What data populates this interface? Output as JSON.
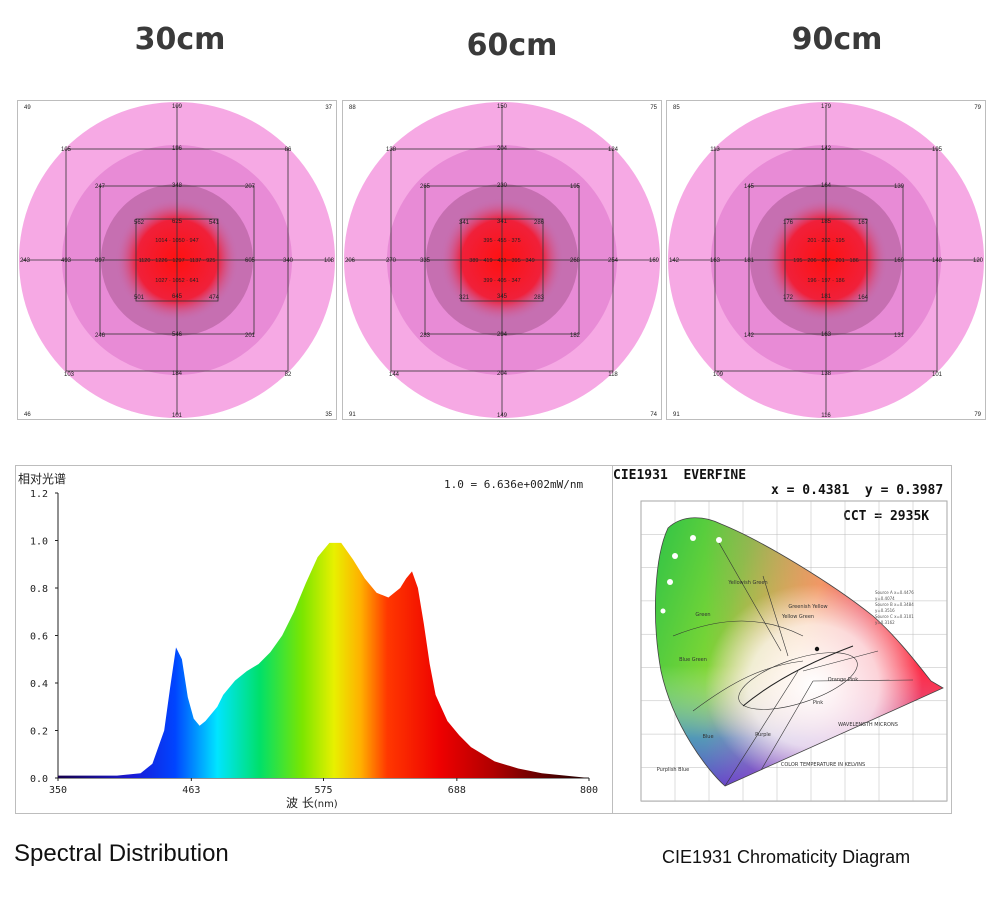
{
  "distances": [
    {
      "label": "30cm",
      "corners": [
        "49",
        "37",
        "46",
        "35"
      ],
      "outer": {
        "top": "109",
        "bottom": "101",
        "left": "243",
        "right": "108"
      },
      "ring1": {
        "tl": "105",
        "t": "196",
        "tr": "86",
        "l": "493",
        "r": "340",
        "bl": "103",
        "b": "184",
        "br": "82"
      },
      "ring2": {
        "tl": "247",
        "t": "348",
        "tr": "207",
        "l": "897",
        "r": "605",
        "bl": "246",
        "b": "546",
        "br": "201"
      },
      "ring3": {
        "tl": "562",
        "t": "625",
        "tr": "541",
        "bl": "501",
        "b": "645",
        "br": "474"
      },
      "core_row1": "1014 · 1050 · 947",
      "core_row2": "1120 · 1226 · 1297 · 1137 · 925",
      "core_row3": "1027 · 1052 · 641"
    },
    {
      "label": "60cm",
      "corners": [
        "88",
        "75",
        "91",
        "74"
      ],
      "outer": {
        "top": "150",
        "bottom": "149",
        "left": "206",
        "right": "169"
      },
      "ring1": {
        "tl": "138",
        "t": "204",
        "tr": "124",
        "l": "270",
        "r": "254",
        "bl": "144",
        "b": "204",
        "br": "118"
      },
      "ring2": {
        "tl": "265",
        "t": "230",
        "tr": "195",
        "l": "335",
        "r": "268",
        "bl": "283",
        "b": "294",
        "br": "182"
      },
      "ring3": {
        "tl": "341",
        "t": "341",
        "tr": "286",
        "bl": "321",
        "b": "345",
        "br": "283"
      },
      "core_row1": "395 · 455 · 375",
      "core_row2": "389 · 419 · 421 · 395 · 349",
      "core_row3": "399 · 405 · 347"
    },
    {
      "label": "90cm",
      "corners": [
        "85",
        "79",
        "91",
        "79"
      ],
      "outer": {
        "top": "179",
        "bottom": "116",
        "left": "142",
        "right": "120"
      },
      "ring1": {
        "tl": "113",
        "t": "142",
        "tr": "195",
        "l": "163",
        "r": "148",
        "bl": "109",
        "b": "138",
        "br": "101"
      },
      "ring2": {
        "tl": "145",
        "t": "164",
        "tr": "139",
        "l": "181",
        "r": "169",
        "bl": "142",
        "b": "163",
        "br": "131"
      },
      "ring3": {
        "tl": "176",
        "t": "185",
        "tr": "167",
        "bl": "172",
        "b": "181",
        "br": "164"
      },
      "core_row1": "201 · 202 · 195",
      "core_row2": "195 · 206 · 207 · 201 · 186",
      "core_row3": "196 · 197 · 186"
    }
  ],
  "spectrum": {
    "ylabel": "相对光谱",
    "scale_note": "1.0 = 6.636e+002mW/nm",
    "xlabel": "波 长",
    "xunit": "(nm)",
    "caption": "Spectral Distribution"
  },
  "chart_data": {
    "type": "area",
    "x_ticks": [
      "350",
      "463",
      "575",
      "688",
      "800"
    ],
    "y_ticks": [
      "0.0",
      "0.2",
      "0.4",
      "0.6",
      "0.8",
      "1.0",
      "1.2"
    ],
    "xlim": [
      350,
      800
    ],
    "ylim": [
      0,
      1.2
    ],
    "x": [
      350,
      400,
      420,
      430,
      440,
      445,
      450,
      455,
      460,
      465,
      470,
      475,
      480,
      485,
      490,
      500,
      510,
      520,
      530,
      540,
      550,
      560,
      570,
      580,
      590,
      600,
      610,
      620,
      630,
      640,
      645,
      650,
      655,
      660,
      665,
      670,
      680,
      690,
      700,
      720,
      740,
      760,
      780,
      800
    ],
    "y": [
      0.01,
      0.01,
      0.02,
      0.06,
      0.2,
      0.38,
      0.55,
      0.5,
      0.34,
      0.25,
      0.22,
      0.24,
      0.27,
      0.3,
      0.35,
      0.41,
      0.45,
      0.48,
      0.53,
      0.6,
      0.7,
      0.82,
      0.93,
      0.99,
      0.99,
      0.92,
      0.84,
      0.78,
      0.76,
      0.8,
      0.84,
      0.87,
      0.8,
      0.65,
      0.48,
      0.35,
      0.24,
      0.18,
      0.13,
      0.07,
      0.04,
      0.02,
      0.01,
      0.0
    ]
  },
  "cie": {
    "header_left": "CIE1931  EVERFINE",
    "xy": "x = 0.4381  y = 0.3987",
    "cct": "CCT = 2935K",
    "caption": "CIE1931 Chromaticity Diagram",
    "region_labels": [
      "Green",
      "Yellowish Green",
      "Greenish Yellow",
      "Yellow Green",
      "Blue Green",
      "Purplish Blue",
      "Blue",
      "Purple",
      "Pink",
      "Orange Pink",
      "WAVELENGTH MICRONS",
      "COLOR TEMPERATURE IN KELVINS"
    ]
  },
  "colors": {
    "outer_pink": "#f6a9e4",
    "mid_pink": "#e88bd6",
    "inner_pink": "#c66fb1",
    "core_red": "#ff1b1b"
  }
}
